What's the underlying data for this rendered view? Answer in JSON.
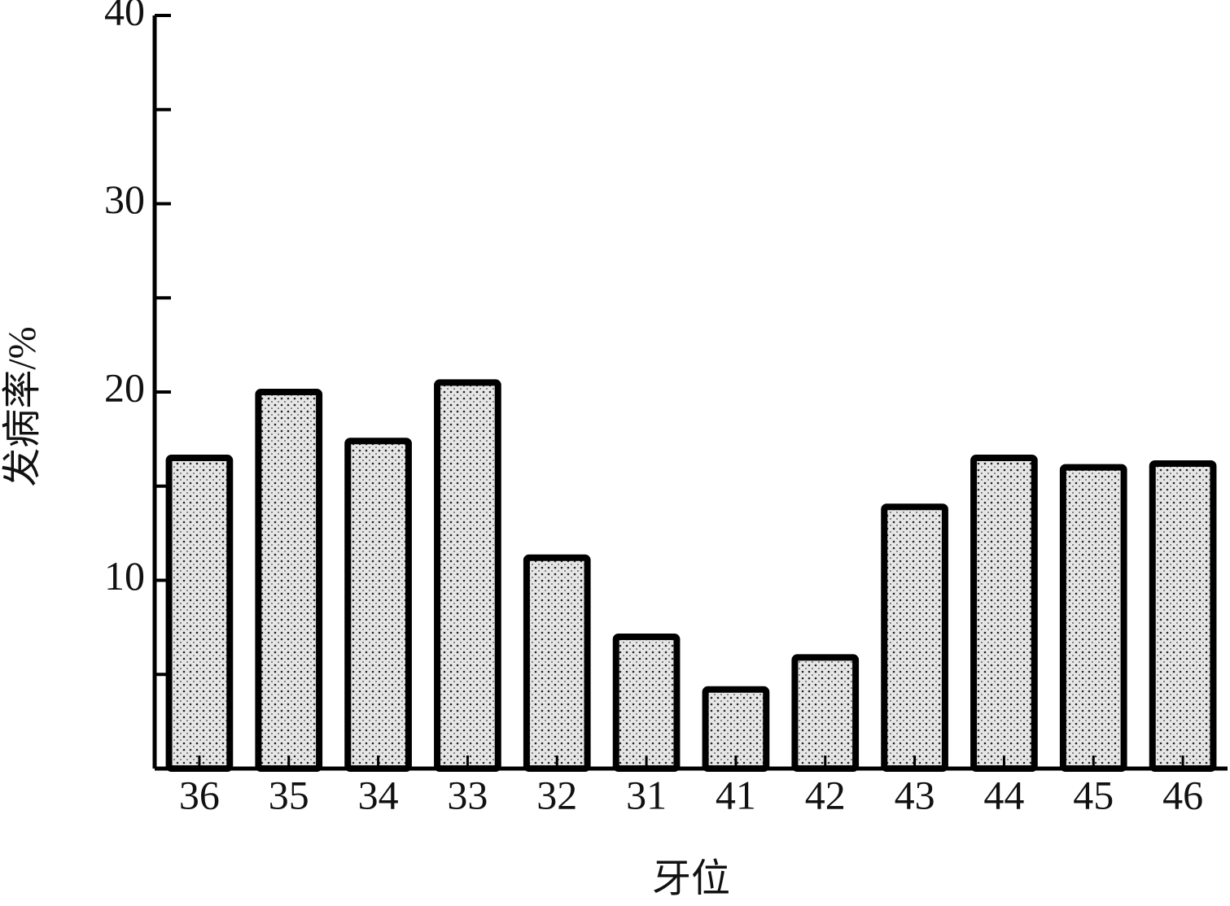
{
  "chart_data": {
    "type": "bar",
    "y_label": "发病率/%",
    "x_label": "牙位",
    "categories": [
      "36",
      "35",
      "34",
      "33",
      "32",
      "31",
      "41",
      "42",
      "43",
      "44",
      "45",
      "46"
    ],
    "values": [
      16.5,
      20,
      17.4,
      20.5,
      11.2,
      7,
      4.2,
      5.9,
      13.9,
      16.5,
      16,
      16.2
    ],
    "color": "#e6e6e6",
    "ylim": [
      0,
      40
    ],
    "yticks": [
      10,
      20,
      30,
      40
    ],
    "minor_yticks": [
      5,
      15,
      25,
      35
    ],
    "grid": false
  }
}
